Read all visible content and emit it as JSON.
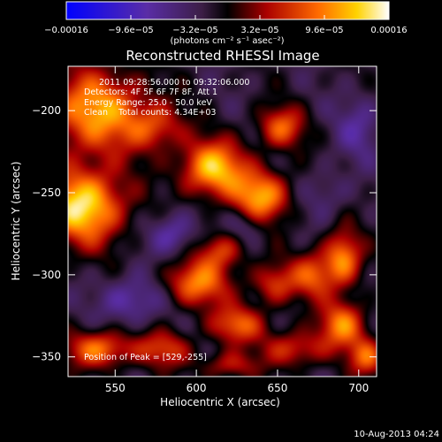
{
  "chart_data": {
    "type": "heatmap",
    "title": "Reconstructed RHESSI Image",
    "xlabel": "Heliocentric X (arcsec)",
    "ylabel": "Heliocentric Y (arcsec)",
    "xlim": [
      521,
      711
    ],
    "ylim": [
      -362,
      -173
    ],
    "xticks": [
      550,
      600,
      650,
      700
    ],
    "yticks": [
      -200,
      -250,
      -300,
      -350
    ],
    "xtick_labels": [
      "550",
      "600",
      "650",
      "700"
    ],
    "ytick_labels": [
      "−200",
      "−250",
      "−300",
      "−350"
    ],
    "colorbar": {
      "range": [
        -0.00016,
        0.00016
      ],
      "ticks": [
        -0.00016,
        -9.6e-05,
        -3.2e-05,
        3.2e-05,
        9.6e-05,
        0.00016
      ],
      "tick_labels": [
        "−0.00016",
        "−9.6e−05",
        "−3.2e−05",
        "3.2e−05",
        "9.6e−05",
        "0.00016"
      ],
      "unit_label": "(photons cm⁻² s⁻¹ asec⁻²)"
    },
    "annotations": [
      "2011 09:28:56.000 to 09:32:06.000",
      "Detectors: 4F 5F 6F 7F 8F, Att 1",
      "Energy Range: 25.0 - 50.0 keV",
      "Clean    Total counts: 4.34E+03",
      "Position of Peak = [529,-255]"
    ],
    "timestamp": "10-Aug-2013 04:24",
    "grid": false,
    "blobs": [
      {
        "x": 530,
        "y": -258,
        "v": 1.0,
        "sx": 18,
        "sy": 16
      },
      {
        "x": 538,
        "y": -200,
        "v": 0.8,
        "sx": 22,
        "sy": 18
      },
      {
        "x": 575,
        "y": -210,
        "v": 0.45,
        "sx": 12,
        "sy": 10
      },
      {
        "x": 610,
        "y": -235,
        "v": 0.9,
        "sx": 14,
        "sy": 12
      },
      {
        "x": 640,
        "y": -252,
        "v": 0.8,
        "sx": 12,
        "sy": 11
      },
      {
        "x": 652,
        "y": -210,
        "v": 0.6,
        "sx": 10,
        "sy": 9
      },
      {
        "x": 600,
        "y": -305,
        "v": 0.7,
        "sx": 14,
        "sy": 10
      },
      {
        "x": 615,
        "y": -285,
        "v": 0.5,
        "sx": 10,
        "sy": 8
      },
      {
        "x": 648,
        "y": -305,
        "v": 0.5,
        "sx": 10,
        "sy": 9
      },
      {
        "x": 672,
        "y": -300,
        "v": 0.55,
        "sx": 9,
        "sy": 10
      },
      {
        "x": 690,
        "y": -290,
        "v": 0.75,
        "sx": 8,
        "sy": 12
      },
      {
        "x": 690,
        "y": -330,
        "v": 0.7,
        "sx": 10,
        "sy": 10
      },
      {
        "x": 625,
        "y": -330,
        "v": 0.6,
        "sx": 12,
        "sy": 8
      },
      {
        "x": 660,
        "y": -345,
        "v": 0.5,
        "sx": 14,
        "sy": 8
      },
      {
        "x": 540,
        "y": -345,
        "v": 0.7,
        "sx": 14,
        "sy": 8
      },
      {
        "x": 580,
        "y": -345,
        "v": 0.5,
        "sx": 12,
        "sy": 8
      },
      {
        "x": 705,
        "y": -350,
        "v": 0.6,
        "sx": 8,
        "sy": 8
      },
      {
        "x": 620,
        "y": -355,
        "v": 0.4,
        "sx": 12,
        "sy": 6
      },
      {
        "x": 560,
        "y": -315,
        "v": -0.4,
        "sx": 14,
        "sy": 10
      },
      {
        "x": 585,
        "y": -275,
        "v": -0.4,
        "sx": 10,
        "sy": 9
      },
      {
        "x": 630,
        "y": -270,
        "v": -0.25,
        "sx": 8,
        "sy": 7
      },
      {
        "x": 700,
        "y": -210,
        "v": -0.3,
        "sx": 10,
        "sy": 14
      },
      {
        "x": 680,
        "y": -250,
        "v": -0.2,
        "sx": 10,
        "sy": 10
      }
    ]
  }
}
